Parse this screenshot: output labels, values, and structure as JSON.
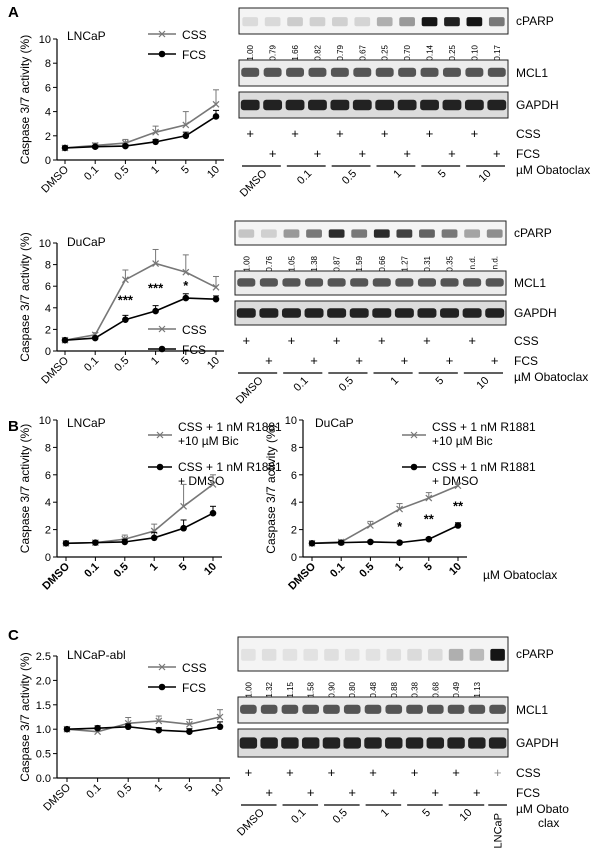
{
  "panels": [
    {
      "letter": "A",
      "cell_line": "LNCaP",
      "legend": [
        "CSS",
        "FCS"
      ],
      "chart_data": {
        "type": "line",
        "ylabel": "Caspase 3/7 activity (%)",
        "categories": [
          "DMSO",
          "0.1",
          "0.5",
          "1",
          "5",
          "10"
        ],
        "ylim": [
          0,
          10
        ],
        "yticks": [
          0,
          2,
          4,
          6,
          8,
          10
        ],
        "series": [
          {
            "name": "CSS",
            "values": [
              1.0,
              1.2,
              1.4,
              2.3,
              2.9,
              4.6
            ],
            "err": [
              0.1,
              0.2,
              0.3,
              0.5,
              1.1,
              1.2
            ]
          },
          {
            "name": "FCS",
            "values": [
              1.0,
              1.1,
              1.15,
              1.5,
              2.0,
              3.6
            ],
            "err": [
              0.1,
              0.1,
              0.15,
              0.2,
              0.3,
              0.5
            ]
          }
        ],
        "annotations": []
      },
      "blot": {
        "top_label": "cPARP",
        "values": [
          "1.00",
          "0.79",
          "1.66",
          "0.82",
          "0.79",
          "0.67",
          "0.25",
          "0.70",
          "0.14",
          "0.25",
          "0.10",
          "0.17"
        ],
        "labels": [
          "MCL1",
          "GAPDH"
        ],
        "cond_rows": [
          "CSS",
          "FCS"
        ],
        "doses": [
          "DMSO",
          "0.1",
          "0.5",
          "1",
          "5",
          "10"
        ],
        "dose_unit": "µM Obatoclax",
        "cparp": [
          0.05,
          0.06,
          0.12,
          0.1,
          0.1,
          0.08,
          0.25,
          0.35,
          0.95,
          0.9,
          0.95,
          0.5
        ]
      }
    },
    {
      "letter": "",
      "cell_line": "DuCaP",
      "legend": [
        "CSS",
        "FCS"
      ],
      "chart_data": {
        "type": "line",
        "ylabel": "Caspase 3/7 activity (%)",
        "categories": [
          "DMSO",
          "0.1",
          "0.5",
          "1",
          "5",
          "10"
        ],
        "ylim": [
          0,
          10
        ],
        "yticks": [
          0,
          2,
          4,
          6,
          8,
          10
        ],
        "series": [
          {
            "name": "CSS",
            "values": [
              1.0,
              1.5,
              6.6,
              8.1,
              7.3,
              5.9
            ],
            "err": [
              0.1,
              0.2,
              0.9,
              1.3,
              1.6,
              1.0
            ]
          },
          {
            "name": "FCS",
            "values": [
              1.0,
              1.2,
              2.9,
              3.7,
              4.9,
              4.8
            ],
            "err": [
              0.1,
              0.1,
              0.4,
              0.5,
              0.4,
              0.3
            ]
          }
        ],
        "annotations": [
          [
            "0.5",
            "***"
          ],
          [
            "1",
            "***"
          ],
          [
            "5",
            "*"
          ]
        ]
      },
      "blot": {
        "top_label": "cPARP",
        "values": [
          "1.00",
          "0.76",
          "1.05",
          "1.38",
          "0.87",
          "1.59",
          "0.66",
          "1.27",
          "0.31",
          "0.35",
          "n.d.",
          "n.d."
        ],
        "labels": [
          "MCL1",
          "GAPDH"
        ],
        "cond_rows": [
          "CSS",
          "FCS"
        ],
        "doses": [
          "DMSO",
          "0.1",
          "0.5",
          "1",
          "5",
          "10"
        ],
        "dose_unit": "µM Obatoclax",
        "cparp": [
          0.15,
          0.1,
          0.35,
          0.5,
          0.85,
          0.5,
          0.85,
          0.75,
          0.6,
          0.5,
          0.3,
          0.4
        ]
      }
    },
    {
      "letter": "B",
      "cell_line": "LNCaP",
      "legend": [
        "CSS + 1 nM R1881",
        "+10 µM Bic",
        "CSS + 1 nM R1881",
        "+ DMSO"
      ],
      "chart_data": {
        "type": "line",
        "ylabel": "Caspase 3/7 activity (%)",
        "categories": [
          "DMSO",
          "0.1",
          "0.5",
          "1",
          "5",
          "10"
        ],
        "ylim": [
          0,
          10
        ],
        "yticks": [
          0,
          2,
          4,
          6,
          8,
          10
        ],
        "series": [
          {
            "name": "CSS + 1 nM R1881 +10 µM Bic",
            "values": [
              1.0,
              1.05,
              1.3,
              1.9,
              3.7,
              5.3
            ],
            "err": [
              0.1,
              0.1,
              0.3,
              0.5,
              1.6,
              0.7
            ]
          },
          {
            "name": "CSS + 1 nM R1881 + DMSO",
            "values": [
              1.0,
              1.05,
              1.1,
              1.4,
              2.1,
              3.2
            ],
            "err": [
              0.1,
              0.1,
              0.2,
              0.4,
              0.6,
              0.5
            ]
          }
        ],
        "annotations": []
      }
    },
    {
      "letter": "",
      "cell_line": "DuCaP",
      "legend": [
        "CSS + 1 nM R1881",
        "+10 µM Bic",
        "CSS + 1 nM R1881",
        "+ DMSO"
      ],
      "dose_unit": "µM Obatoclax",
      "chart_data": {
        "type": "line",
        "ylabel": "",
        "categories": [
          "DMSO",
          "0.1",
          "0.5",
          "1",
          "5",
          "10"
        ],
        "ylim": [
          0,
          10
        ],
        "yticks": [
          0,
          2,
          4,
          6,
          8,
          10
        ],
        "series": [
          {
            "name": "CSS + 1 nM R1881 +10 µM Bic",
            "values": [
              1.0,
              1.1,
              2.3,
              3.5,
              4.3,
              5.2
            ],
            "err": [
              0.1,
              0.1,
              0.3,
              0.4,
              0.4,
              0.2
            ]
          },
          {
            "name": "CSS + 1 nM R1881 + DMSO",
            "values": [
              1.0,
              1.05,
              1.1,
              1.05,
              1.3,
              2.3
            ],
            "err": [
              0.1,
              0.1,
              0.1,
              0.1,
              0.1,
              0.2
            ]
          }
        ],
        "annotations": [
          [
            "1",
            "*"
          ],
          [
            "5",
            "**"
          ],
          [
            "10",
            "**"
          ]
        ]
      }
    },
    {
      "letter": "C",
      "cell_line": "LNCaP-abl",
      "legend": [
        "CSS",
        "FCS"
      ],
      "chart_data": {
        "type": "line",
        "ylabel": "Caspase 3/7 activity (%)",
        "categories": [
          "DMSO",
          "0.1",
          "0.5",
          "1",
          "5",
          "10"
        ],
        "ylim": [
          0,
          2.5
        ],
        "yticks": [
          "0.0",
          "0.5",
          "1.0",
          "1.5",
          "2.0",
          "2.5"
        ],
        "series": [
          {
            "name": "CSS",
            "values": [
              1.0,
              0.95,
              1.12,
              1.17,
              1.1,
              1.25
            ],
            "err": [
              0.03,
              0.07,
              0.12,
              0.1,
              0.1,
              0.15
            ]
          },
          {
            "name": "FCS",
            "values": [
              1.0,
              1.02,
              1.05,
              0.98,
              0.95,
              1.05
            ],
            "err": [
              0.03,
              0.05,
              0.06,
              0.05,
              0.06,
              0.1
            ]
          }
        ],
        "annotations": []
      },
      "blot": {
        "top_label": "cPARP",
        "values": [
          "1.00",
          "1.32",
          "1.15",
          "1.58",
          "0.90",
          "0.80",
          "0.48",
          "0.88",
          "0.38",
          "0.68",
          "0.49",
          "1.13"
        ],
        "labels": [
          "MCL1",
          "GAPDH"
        ],
        "cond_rows": [
          "CSS",
          "FCS"
        ],
        "doses": [
          "DMSO",
          "0.1",
          "0.5",
          "1",
          "5",
          "10"
        ],
        "extra_lane": "LNCaP",
        "dose_unit": "µM Obato",
        "dose_unit2": "clax",
        "cparp": [
          0.02,
          0.03,
          0.02,
          0.02,
          0.03,
          0.02,
          0.02,
          0.03,
          0.05,
          0.05,
          0.25,
          0.2,
          0.95
        ]
      }
    }
  ]
}
